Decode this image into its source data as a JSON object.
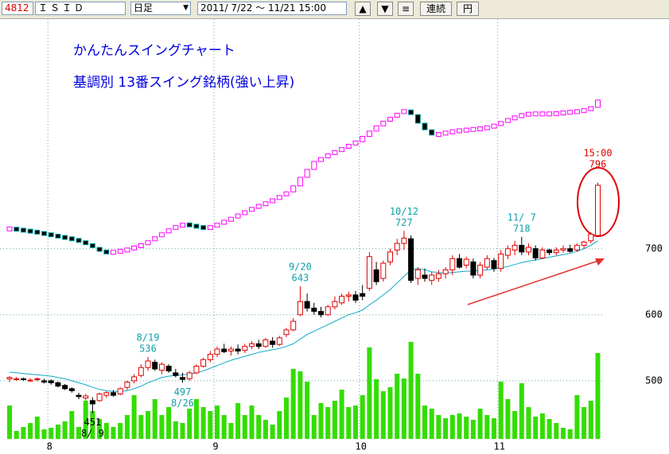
{
  "toolbar": {
    "code": "4812",
    "name": "ＩＳＩＤ",
    "period": "日足",
    "range": "2011/ 7/22 ～ 11/21 15:00",
    "buttons": [
      "▲",
      "▼",
      "≡",
      "連続",
      "円"
    ]
  },
  "chart_data": {
    "type": "candlestick",
    "title": "かんたんスイングチャート",
    "subtitle": "基調別 13番スイング銘柄(強い上昇)",
    "categories": [
      null,
      null,
      null,
      null,
      null,
      null,
      "8",
      null,
      null,
      null,
      null,
      null,
      null,
      null,
      null,
      null,
      null,
      null,
      null,
      null,
      null,
      null,
      null,
      null,
      null,
      null,
      null,
      null,
      null,
      null,
      "9",
      null,
      null,
      null,
      null,
      null,
      null,
      null,
      null,
      null,
      null,
      null,
      null,
      null,
      null,
      null,
      null,
      null,
      null,
      null,
      null,
      "10",
      null,
      null,
      null,
      null,
      null,
      null,
      null,
      null,
      null,
      null,
      null,
      null,
      null,
      null,
      null,
      null,
      null,
      null,
      null,
      "11",
      null,
      null,
      null,
      null,
      null,
      null,
      null,
      null,
      null,
      null,
      null,
      null,
      null,
      null
    ],
    "ohlc": [
      [
        503,
        507,
        498,
        505
      ],
      [
        502,
        506,
        500,
        503
      ],
      [
        503,
        505,
        500,
        502
      ],
      [
        500,
        504,
        498,
        501
      ],
      [
        502,
        505,
        499,
        503
      ],
      [
        500,
        503,
        496,
        498
      ],
      [
        500,
        502,
        494,
        497
      ],
      [
        497,
        499,
        490,
        492
      ],
      [
        493,
        495,
        486,
        488
      ],
      [
        488,
        490,
        482,
        485
      ],
      [
        478,
        482,
        472,
        476
      ],
      [
        474,
        480,
        470,
        477
      ],
      [
        470,
        475,
        451,
        465
      ],
      [
        470,
        482,
        468,
        480
      ],
      [
        478,
        484,
        474,
        482
      ],
      [
        482,
        486,
        476,
        478
      ],
      [
        480,
        490,
        478,
        488
      ],
      [
        490,
        500,
        486,
        498
      ],
      [
        500,
        510,
        496,
        506
      ],
      [
        508,
        525,
        505,
        520
      ],
      [
        520,
        536,
        515,
        530
      ],
      [
        528,
        532,
        515,
        518
      ],
      [
        516,
        528,
        510,
        525
      ],
      [
        522,
        525,
        512,
        515
      ],
      [
        512,
        518,
        505,
        508
      ],
      [
        505,
        512,
        497,
        502
      ],
      [
        503,
        515,
        500,
        512
      ],
      [
        512,
        525,
        510,
        522
      ],
      [
        522,
        535,
        520,
        532
      ],
      [
        532,
        545,
        528,
        540
      ],
      [
        540,
        552,
        536,
        548
      ],
      [
        548,
        556,
        542,
        544
      ],
      [
        545,
        552,
        538,
        548
      ],
      [
        548,
        555,
        540,
        545
      ],
      [
        546,
        556,
        542,
        552
      ],
      [
        552,
        560,
        548,
        556
      ],
      [
        556,
        562,
        548,
        552
      ],
      [
        552,
        565,
        550,
        562
      ],
      [
        560,
        566,
        550,
        555
      ],
      [
        555,
        568,
        553,
        565
      ],
      [
        570,
        580,
        566,
        577
      ],
      [
        577,
        595,
        575,
        590
      ],
      [
        600,
        643,
        598,
        620
      ],
      [
        620,
        632,
        605,
        610
      ],
      [
        610,
        618,
        600,
        605
      ],
      [
        605,
        612,
        596,
        600
      ],
      [
        600,
        615,
        598,
        612
      ],
      [
        612,
        628,
        608,
        620
      ],
      [
        618,
        632,
        615,
        628
      ],
      [
        628,
        635,
        620,
        630
      ],
      [
        630,
        636,
        618,
        622
      ],
      [
        632,
        645,
        622,
        628
      ],
      [
        640,
        695,
        636,
        688
      ],
      [
        668,
        680,
        645,
        650
      ],
      [
        655,
        682,
        650,
        678
      ],
      [
        680,
        700,
        675,
        695
      ],
      [
        698,
        715,
        690,
        708
      ],
      [
        708,
        727,
        698,
        716
      ],
      [
        715,
        720,
        648,
        652
      ],
      [
        655,
        672,
        645,
        668
      ],
      [
        660,
        670,
        650,
        655
      ],
      [
        652,
        665,
        645,
        660
      ],
      [
        655,
        668,
        650,
        662
      ],
      [
        662,
        672,
        655,
        668
      ],
      [
        668,
        690,
        660,
        685
      ],
      [
        685,
        692,
        670,
        672
      ],
      [
        675,
        688,
        670,
        684
      ],
      [
        680,
        685,
        655,
        660
      ],
      [
        660,
        680,
        655,
        675
      ],
      [
        672,
        690,
        668,
        685
      ],
      [
        682,
        686,
        665,
        670
      ],
      [
        670,
        698,
        665,
        692
      ],
      [
        690,
        705,
        684,
        700
      ],
      [
        698,
        712,
        690,
        705
      ],
      [
        705,
        718,
        690,
        695
      ],
      [
        695,
        708,
        690,
        702
      ],
      [
        700,
        705,
        682,
        686
      ],
      [
        686,
        702,
        684,
        698
      ],
      [
        698,
        700,
        690,
        694
      ],
      [
        694,
        702,
        690,
        698
      ],
      [
        698,
        705,
        694,
        700
      ],
      [
        700,
        706,
        694,
        696
      ],
      [
        698,
        708,
        695,
        705
      ],
      [
        705,
        712,
        700,
        710
      ],
      [
        712,
        725,
        708,
        722
      ],
      [
        720,
        800,
        718,
        796
      ]
    ],
    "ma": {
      "values": [
        513,
        512,
        511,
        510,
        509,
        508,
        507,
        505,
        503,
        500,
        497,
        494,
        490,
        487,
        485,
        484,
        484,
        485,
        488,
        492,
        497,
        501,
        505,
        507,
        508,
        509,
        510,
        512,
        515,
        519,
        523,
        527,
        531,
        534,
        537,
        540,
        543,
        545,
        547,
        549,
        552,
        556,
        563,
        570,
        575,
        580,
        585,
        590,
        595,
        600,
        603,
        607,
        615,
        622,
        630,
        638,
        648,
        658,
        668,
        670,
        668,
        665,
        664,
        663,
        664,
        665,
        666,
        666,
        667,
        668,
        669,
        671,
        673,
        676,
        679,
        681,
        683,
        685,
        687,
        689,
        691,
        693,
        696,
        700,
        705,
        712
      ]
    },
    "swing": {
      "values": [
        730,
        729,
        727,
        726,
        724,
        722,
        720,
        718,
        716,
        714,
        711,
        707,
        702,
        696,
        694,
        695,
        697,
        699,
        703,
        706,
        712,
        718,
        724,
        730,
        734,
        737,
        735,
        733,
        731,
        733,
        738,
        742,
        747,
        752,
        757,
        762,
        766,
        770,
        775,
        780,
        786,
        795,
        808,
        820,
        832,
        838,
        843,
        848,
        852,
        858,
        862,
        870,
        878,
        886,
        893,
        899,
        905,
        910,
        903,
        890,
        880,
        872,
        874,
        876,
        878,
        879,
        880,
        881,
        882,
        884,
        887,
        892,
        896,
        900,
        903,
        904,
        904,
        904,
        904,
        905,
        906,
        907,
        908,
        910,
        914,
        925
      ]
    },
    "volume": {
      "values": [
        42,
        10,
        15,
        20,
        28,
        12,
        14,
        18,
        22,
        35,
        15,
        48,
        35,
        25,
        20,
        15,
        20,
        30,
        55,
        30,
        35,
        50,
        30,
        40,
        22,
        20,
        38,
        50,
        40,
        35,
        42,
        30,
        20,
        45,
        30,
        42,
        30,
        24,
        18,
        35,
        52,
        88,
        85,
        72,
        30,
        45,
        40,
        48,
        62,
        40,
        42,
        55,
        115,
        75,
        60,
        65,
        82,
        76,
        122,
        82,
        42,
        38,
        30,
        26,
        30,
        32,
        28,
        24,
        38,
        30,
        26,
        72,
        50,
        35,
        70,
        40,
        28,
        32,
        25,
        20,
        14,
        12,
        55,
        40,
        48,
        108
      ],
      "vlim": [
        0,
        130
      ]
    },
    "annotations": [
      {
        "text": [
          "8/19",
          "536"
        ],
        "value": 536,
        "color": "#0f9fa8"
      },
      {
        "text": [
          "497",
          "8/26"
        ],
        "value": 497,
        "color": "#0f9fa8"
      },
      {
        "text": [
          "451",
          "8/ 9"
        ],
        "value": 451,
        "color": "#000000"
      },
      {
        "text": [
          "9/20",
          "643"
        ],
        "value": 643,
        "color": "#0f9fa8"
      },
      {
        "text": [
          "10/12",
          "727"
        ],
        "value": 727,
        "color": "#0f9fa8"
      },
      {
        "text": [
          "11/ 7",
          "718"
        ],
        "value": 718,
        "color": "#0f9fa8"
      },
      {
        "text": [
          "15:00",
          "796"
        ],
        "value": 796,
        "color": "#e00000"
      }
    ],
    "ylim": [
      412,
      1050
    ],
    "yticks": [
      500,
      600,
      700
    ],
    "grid": true,
    "colors": {
      "up": "#e00000",
      "down": "#000000",
      "ma": "#10a8c8",
      "volume": "#33dd00",
      "swing_up": "#ff00ff",
      "swing_down": "#00a0a0",
      "title": "#0000e0"
    }
  }
}
